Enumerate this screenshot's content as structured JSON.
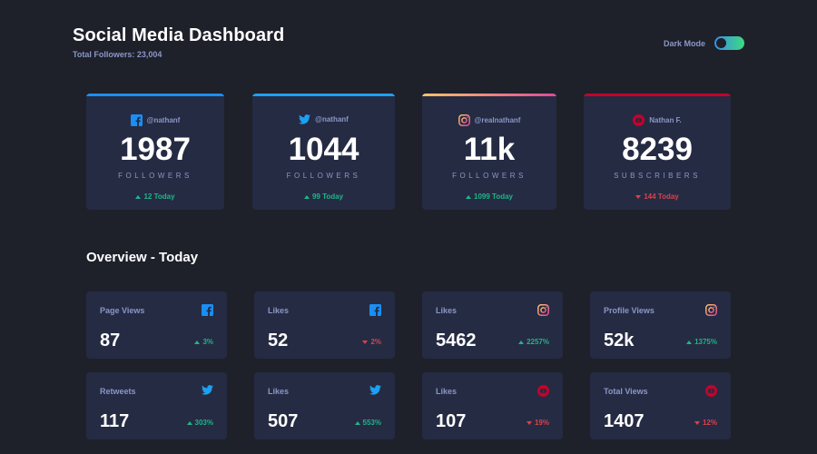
{
  "header": {
    "title": "Social Media Dashboard",
    "subtitle": "Total Followers: 23,004"
  },
  "mode": {
    "label": "Dark Mode",
    "enabled": true
  },
  "colors": {
    "facebook": "#198ff5",
    "twitter": "#1ca0f2",
    "instagram_start": "#fdc468",
    "instagram_end": "#df4996",
    "youtube": "#c4032a",
    "up": "#1eb589",
    "down": "#dc414c"
  },
  "cards": [
    {
      "network": "facebook",
      "icon": "facebook-icon",
      "handle": "@nathanf",
      "count": "1987",
      "unit": "FOLLOWERS",
      "direction": "up",
      "change": "12 Today"
    },
    {
      "network": "twitter",
      "icon": "twitter-icon",
      "handle": "@nathanf",
      "count": "1044",
      "unit": "FOLLOWERS",
      "direction": "up",
      "change": "99 Today"
    },
    {
      "network": "instagram",
      "icon": "instagram-icon",
      "handle": "@realnathanf",
      "count": "11k",
      "unit": "FOLLOWERS",
      "direction": "up",
      "change": "1099 Today"
    },
    {
      "network": "youtube",
      "icon": "youtube-icon",
      "handle": "Nathan F.",
      "count": "8239",
      "unit": "SUBSCRIBERS",
      "direction": "down",
      "change": "144 Today"
    }
  ],
  "overview": {
    "title": "Overview - Today",
    "tiles": [
      {
        "label": "Page Views",
        "icon": "facebook-icon",
        "value": "87",
        "direction": "up",
        "change": "3%"
      },
      {
        "label": "Likes",
        "icon": "facebook-icon",
        "value": "52",
        "direction": "down",
        "change": "2%"
      },
      {
        "label": "Likes",
        "icon": "instagram-icon",
        "value": "5462",
        "direction": "up",
        "change": "2257%"
      },
      {
        "label": "Profile Views",
        "icon": "instagram-icon",
        "value": "52k",
        "direction": "up",
        "change": "1375%"
      },
      {
        "label": "Retweets",
        "icon": "twitter-icon",
        "value": "117",
        "direction": "up",
        "change": "303%"
      },
      {
        "label": "Likes",
        "icon": "twitter-icon",
        "value": "507",
        "direction": "up",
        "change": "553%"
      },
      {
        "label": "Likes",
        "icon": "youtube-icon",
        "value": "107",
        "direction": "down",
        "change": "19%"
      },
      {
        "label": "Total Views",
        "icon": "youtube-icon",
        "value": "1407",
        "direction": "down",
        "change": "12%"
      }
    ]
  }
}
